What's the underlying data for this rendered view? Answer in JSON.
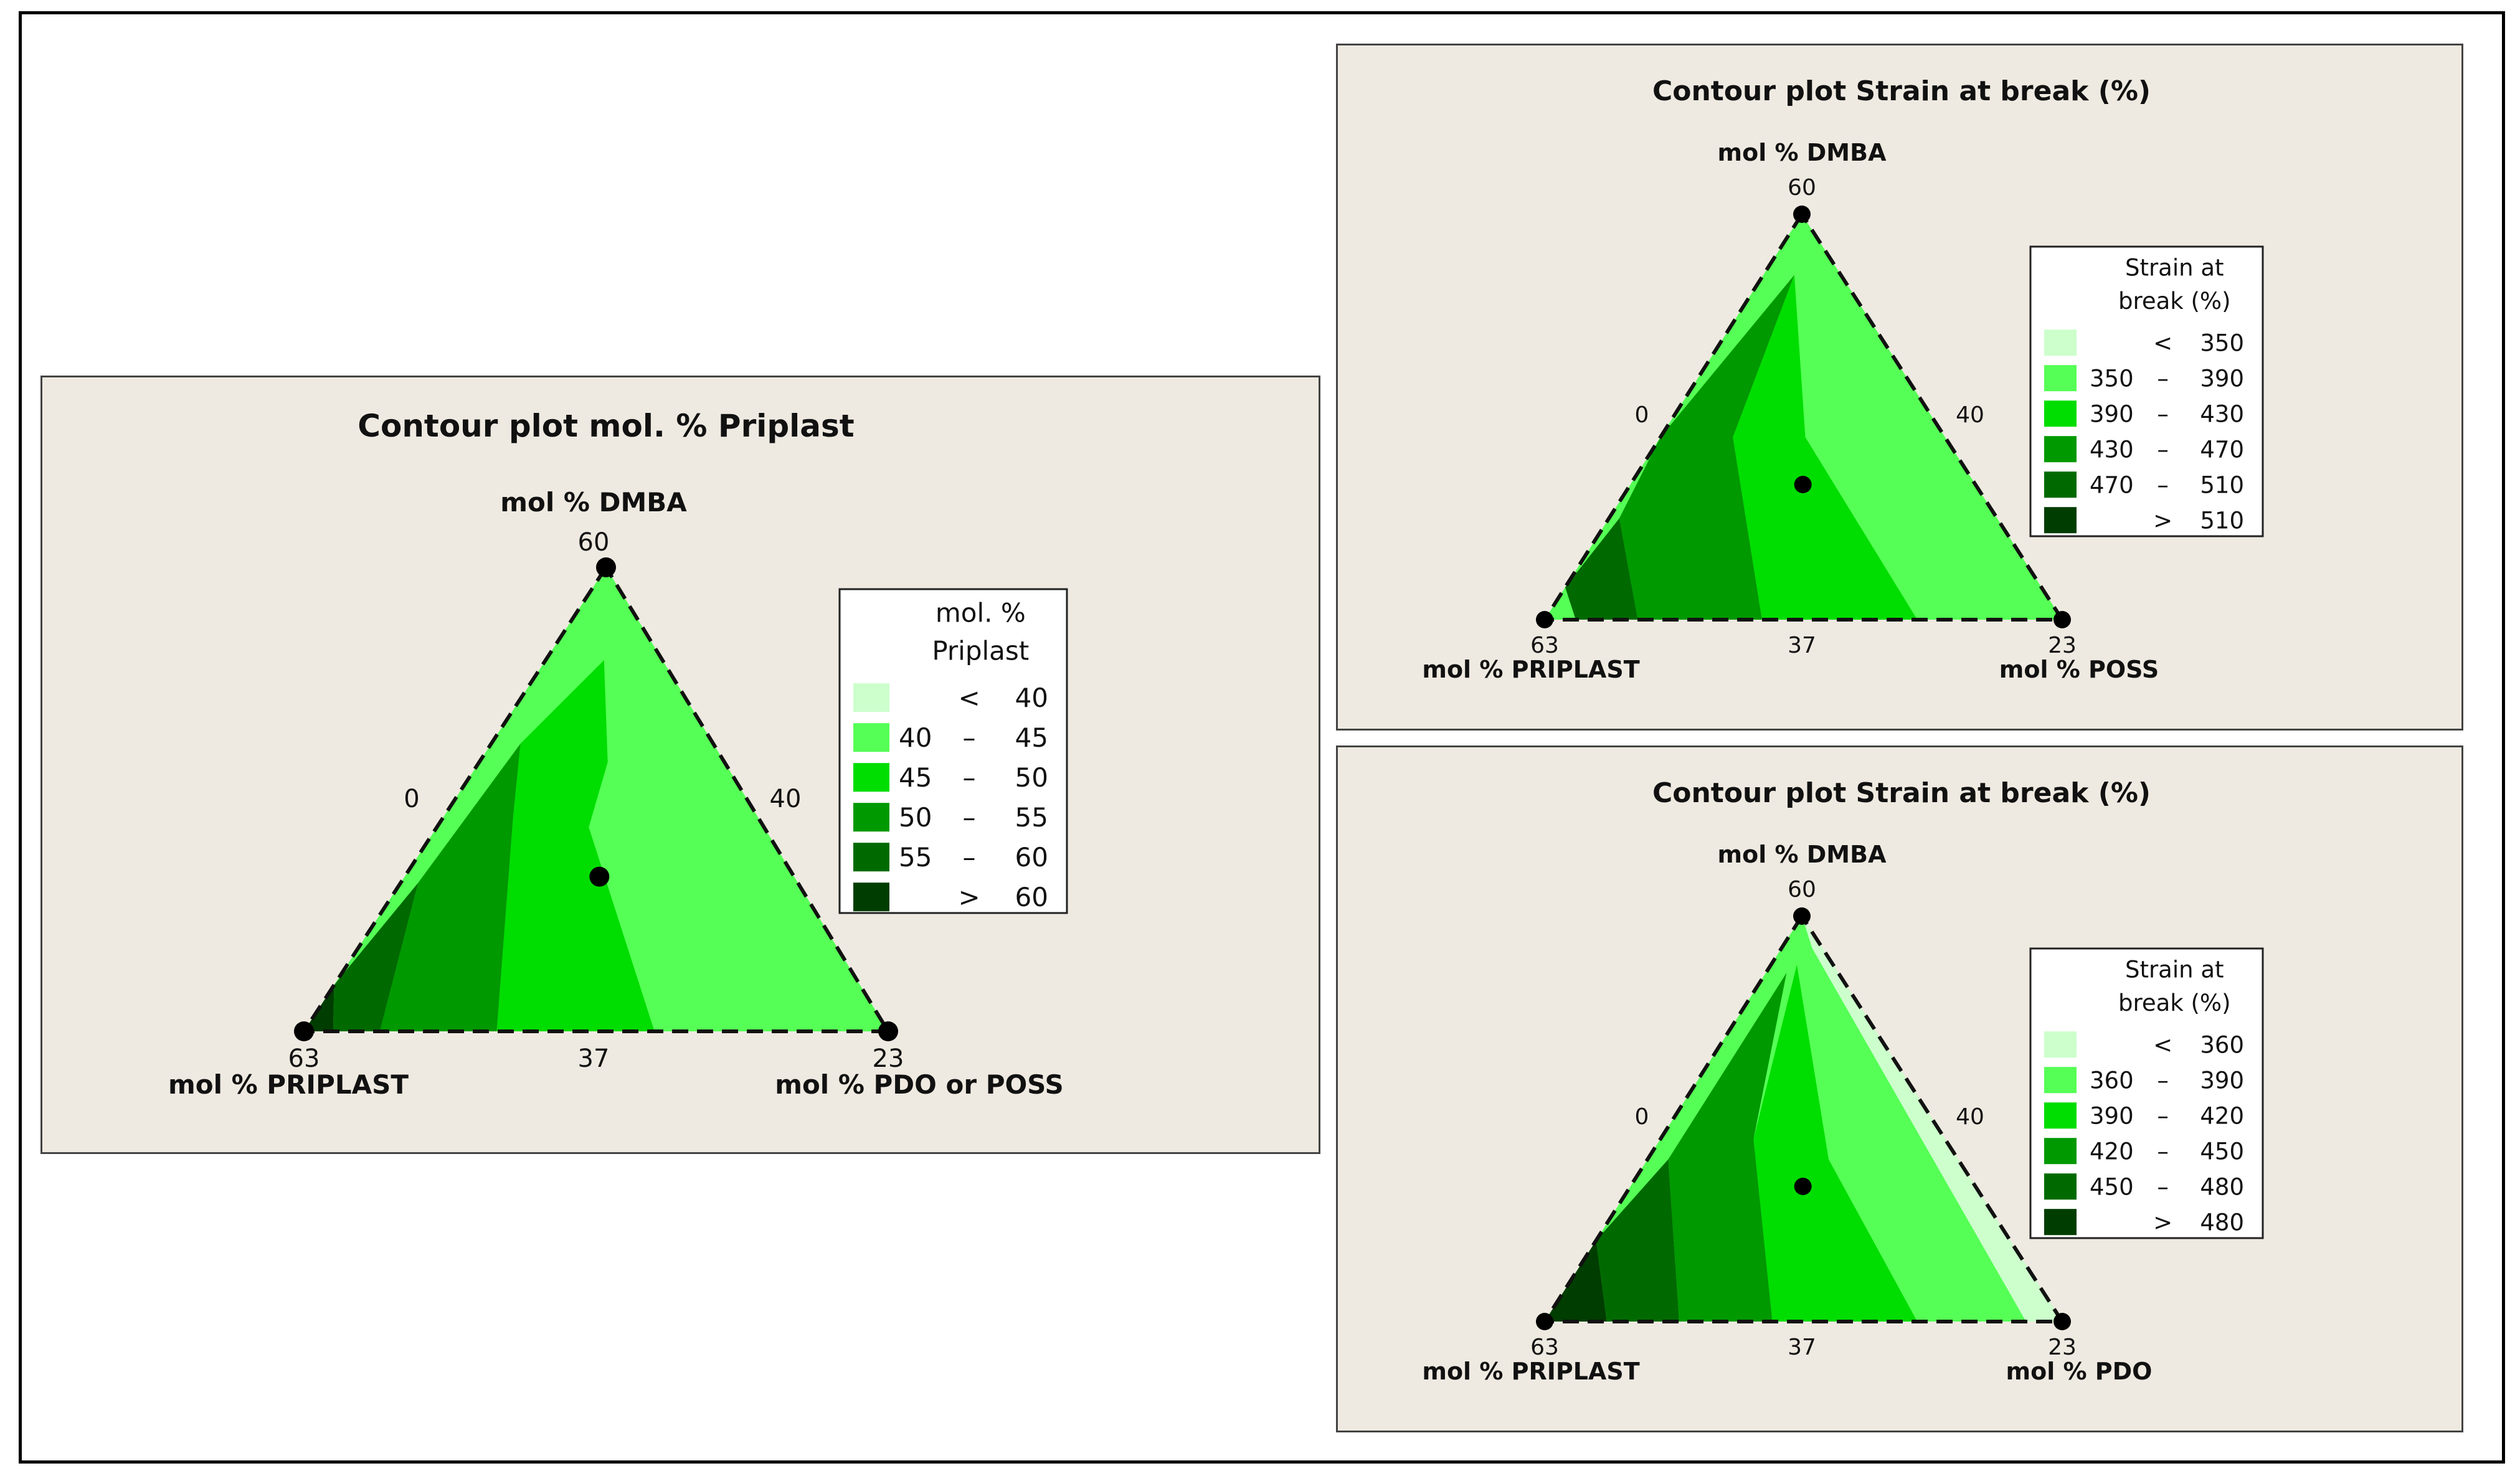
{
  "chart_data": [
    {
      "type": "contour",
      "title": "Contour plot mol. % Priplast",
      "axes": {
        "top": "mol % DMBA",
        "left": "mol % PRIPLAST",
        "right": "mol % PDO or POSS"
      },
      "tick_labels": {
        "top": "60",
        "left_side": "0",
        "right_side": "40",
        "bottom_left": "63",
        "bottom_mid": "37",
        "bottom_right": "23"
      },
      "legend_title": [
        "mol. %",
        "Priplast"
      ],
      "legend": [
        {
          "sym": "<",
          "lo": "",
          "hi": "40",
          "color": "#ccffcc"
        },
        {
          "sym": "–",
          "lo": "40",
          "hi": "45",
          "color": "#55ff55"
        },
        {
          "sym": "–",
          "lo": "45",
          "hi": "50",
          "color": "#00dd00"
        },
        {
          "sym": "–",
          "lo": "50",
          "hi": "55",
          "color": "#009900"
        },
        {
          "sym": "–",
          "lo": "55",
          "hi": "60",
          "color": "#006a00"
        },
        {
          "sym": ">",
          "lo": "",
          "hi": "60",
          "color": "#003d00"
        }
      ],
      "center_point": true
    },
    {
      "type": "contour",
      "title": "Contour plot Strain at break (%)",
      "axes": {
        "top": "mol % DMBA",
        "left": "mol % PRIPLAST",
        "right": "mol % POSS"
      },
      "tick_labels": {
        "top": "60",
        "left_side": "0",
        "right_side": "40",
        "bottom_left": "63",
        "bottom_mid": "37",
        "bottom_right": "23"
      },
      "legend_title": [
        "Strain at",
        "break (%)"
      ],
      "legend": [
        {
          "sym": "<",
          "lo": "",
          "hi": "350",
          "color": "#ccffcc"
        },
        {
          "sym": "–",
          "lo": "350",
          "hi": "390",
          "color": "#55ff55"
        },
        {
          "sym": "–",
          "lo": "390",
          "hi": "430",
          "color": "#00dd00"
        },
        {
          "sym": "–",
          "lo": "430",
          "hi": "470",
          "color": "#009900"
        },
        {
          "sym": "–",
          "lo": "470",
          "hi": "510",
          "color": "#006a00"
        },
        {
          "sym": ">",
          "lo": "",
          "hi": "510",
          "color": "#003d00"
        }
      ],
      "center_point": true
    },
    {
      "type": "contour",
      "title": "Contour plot Strain at break (%)",
      "axes": {
        "top": "mol % DMBA",
        "left": "mol % PRIPLAST",
        "right": "mol % PDO"
      },
      "tick_labels": {
        "top": "60",
        "left_side": "0",
        "right_side": "40",
        "bottom_left": "63",
        "bottom_mid": "37",
        "bottom_right": "23"
      },
      "legend_title": [
        "Strain at",
        "break (%)"
      ],
      "legend": [
        {
          "sym": "<",
          "lo": "",
          "hi": "360",
          "color": "#ccffcc"
        },
        {
          "sym": "–",
          "lo": "360",
          "hi": "390",
          "color": "#55ff55"
        },
        {
          "sym": "–",
          "lo": "390",
          "hi": "420",
          "color": "#00dd00"
        },
        {
          "sym": "–",
          "lo": "420",
          "hi": "450",
          "color": "#009900"
        },
        {
          "sym": "–",
          "lo": "450",
          "hi": "480",
          "color": "#006a00"
        },
        {
          "sym": ">",
          "lo": "",
          "hi": "480",
          "color": "#003d00"
        }
      ],
      "center_point": true
    }
  ]
}
